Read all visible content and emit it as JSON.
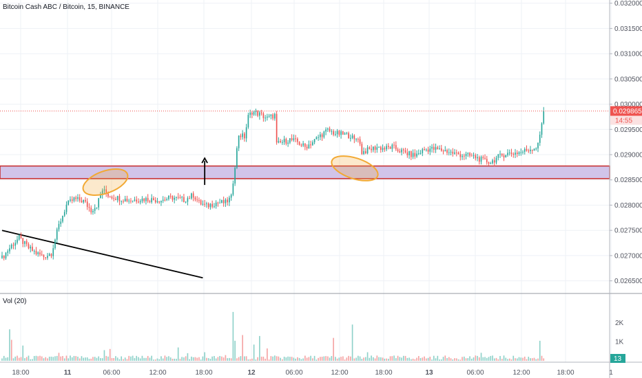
{
  "chart_title": "Bitcoin Cash ABC / Bitcoin, 15, BINANCE",
  "volume_label": "Vol (20)",
  "colors": {
    "up": "#26a69a",
    "down": "#ef5350",
    "vol_up": "#8ed1c9",
    "vol_down": "#f5a3a3",
    "zone_fill": "#d1c4e9",
    "zone_border": "#c62828",
    "highlight": "#f2a933",
    "grid": "#eef1f6",
    "axis_text": "#50535e"
  },
  "chart_data": {
    "type": "candlestick",
    "title": "Bitcoin Cash ABC / Bitcoin, 15, BINANCE",
    "y_ticks": [
      "0.026500",
      "0.027000",
      "0.027500",
      "0.028000",
      "0.028500",
      "0.029000",
      "0.029500",
      "0.030000",
      "0.030500",
      "0.031000",
      "0.031500",
      "0.032000"
    ],
    "y_tick_values": [
      0.0265,
      0.027,
      0.0275,
      0.028,
      0.0285,
      0.029,
      0.0295,
      0.03,
      0.0305,
      0.031,
      0.0315,
      0.032
    ],
    "ylim": [
      0.02625,
      0.03205
    ],
    "x_ticks": [
      "18:00",
      "11",
      "06:00",
      "12:00",
      "18:00",
      "12",
      "06:00",
      "12:00",
      "18:00",
      "13",
      "06:00",
      "12:00",
      "18:00",
      "1"
    ],
    "x_tick_bold": [
      "11",
      "12",
      "13"
    ],
    "price_anchors": [
      [
        0,
        0.02695
      ],
      [
        5,
        0.0272
      ],
      [
        9,
        0.02735
      ],
      [
        14,
        0.02715
      ],
      [
        18,
        0.02705
      ],
      [
        22,
        0.02698
      ],
      [
        26,
        0.02705
      ],
      [
        30,
        0.0276
      ],
      [
        34,
        0.028
      ],
      [
        38,
        0.02812
      ],
      [
        43,
        0.02808
      ],
      [
        47,
        0.0279
      ],
      [
        50,
        0.028
      ],
      [
        53,
        0.0283
      ],
      [
        56,
        0.0282
      ],
      [
        60,
        0.02815
      ],
      [
        67,
        0.0281
      ],
      [
        75,
        0.02812
      ],
      [
        84,
        0.0281
      ],
      [
        90,
        0.02815
      ],
      [
        96,
        0.0281
      ],
      [
        101,
        0.0282
      ],
      [
        104,
        0.02805
      ],
      [
        108,
        0.02798
      ],
      [
        113,
        0.02805
      ],
      [
        118,
        0.02805
      ],
      [
        121,
        0.02815
      ],
      [
        123,
        0.0288
      ],
      [
        125,
        0.0294
      ],
      [
        128,
        0.02935
      ],
      [
        130,
        0.02975
      ],
      [
        132,
        0.02985
      ],
      [
        136,
        0.0298
      ],
      [
        140,
        0.02972
      ],
      [
        144,
        0.02978
      ],
      [
        145,
        0.0292
      ],
      [
        148,
        0.02925
      ],
      [
        152,
        0.0293
      ],
      [
        156,
        0.02925
      ],
      [
        160,
        0.02915
      ],
      [
        164,
        0.02925
      ],
      [
        168,
        0.02938
      ],
      [
        172,
        0.02948
      ],
      [
        176,
        0.02942
      ],
      [
        180,
        0.0294
      ],
      [
        184,
        0.02938
      ],
      [
        186,
        0.02928
      ],
      [
        188,
        0.02935
      ],
      [
        190,
        0.02905
      ],
      [
        194,
        0.0291
      ],
      [
        198,
        0.02915
      ],
      [
        202,
        0.02912
      ],
      [
        206,
        0.02915
      ],
      [
        210,
        0.02908
      ],
      [
        214,
        0.02902
      ],
      [
        218,
        0.02898
      ],
      [
        222,
        0.02908
      ],
      [
        226,
        0.02912
      ],
      [
        230,
        0.0291
      ],
      [
        234,
        0.02908
      ],
      [
        238,
        0.02903
      ],
      [
        242,
        0.029
      ],
      [
        246,
        0.02898
      ],
      [
        250,
        0.02895
      ],
      [
        254,
        0.02888
      ],
      [
        258,
        0.02885
      ],
      [
        262,
        0.02895
      ],
      [
        266,
        0.02902
      ],
      [
        270,
        0.02903
      ],
      [
        274,
        0.02905
      ],
      [
        278,
        0.0291
      ],
      [
        282,
        0.02915
      ],
      [
        284,
        0.02935
      ],
      [
        286,
        0.02988
      ]
    ],
    "volume_scale_ticks": [
      "2K",
      "1K"
    ],
    "volume_scale_values": [
      2000,
      1000
    ],
    "volume_spikes": [
      [
        4,
        1650
      ],
      [
        5,
        1100
      ],
      [
        11,
        800
      ],
      [
        30,
        420
      ],
      [
        54,
        560
      ],
      [
        57,
        620
      ],
      [
        93,
        700
      ],
      [
        98,
        400
      ],
      [
        107,
        450
      ],
      [
        118,
        300
      ],
      [
        122,
        2560
      ],
      [
        123,
        1050
      ],
      [
        127,
        1350
      ],
      [
        133,
        850
      ],
      [
        136,
        1300
      ],
      [
        140,
        650
      ],
      [
        175,
        1200
      ],
      [
        185,
        1900
      ],
      [
        193,
        450
      ],
      [
        253,
        420
      ],
      [
        284,
        1050
      ]
    ],
    "last_price_label": "0.029865",
    "last_price": 0.029865,
    "countdown_label": "14:55",
    "last_volume_label": "13",
    "support_zone": [
      0.028525,
      0.028775
    ],
    "trendline": {
      "start": [
        0,
        0.0275
      ],
      "end": [
        106,
        0.02656
      ]
    },
    "up_arrow": {
      "x": 107,
      "from": 0.0284,
      "to": 0.02893
    }
  }
}
